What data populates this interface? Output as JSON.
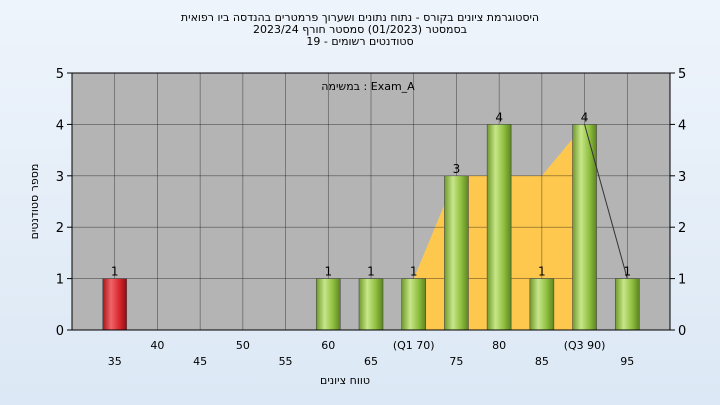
{
  "chart_data": {
    "type": "bar",
    "title_lines": [
      "היסטוגרמת ציונים בקורס - נתוח נתונים ושערוך פרמטרים בהנדסה ביו רפואית",
      "בסמסטר  (01/2023)  סמסטר חורף  2023/24",
      "סטודנטים רשומים - 19"
    ],
    "annotation": "במשימה : Exam_A",
    "xlabel": "טווח ציונים",
    "ylabel": "מספר סטודנטים",
    "ylim": [
      0,
      5
    ],
    "yticks": [
      0,
      1,
      2,
      3,
      4,
      5
    ],
    "grid": true,
    "x_ticks": [
      {
        "x": 35,
        "label": "35",
        "row": "low"
      },
      {
        "x": 40,
        "label": "40",
        "row": "high"
      },
      {
        "x": 45,
        "label": "45",
        "row": "low"
      },
      {
        "x": 50,
        "label": "50",
        "row": "high"
      },
      {
        "x": 55,
        "label": "55",
        "row": "low"
      },
      {
        "x": 60,
        "label": "60",
        "row": "high"
      },
      {
        "x": 65,
        "label": "65",
        "row": "low"
      },
      {
        "x": 70,
        "label": "(Q1 70)",
        "row": "high"
      },
      {
        "x": 75,
        "label": "75",
        "row": "low"
      },
      {
        "x": 80,
        "label": "80",
        "row": "high"
      },
      {
        "x": 85,
        "label": "85",
        "row": "low"
      },
      {
        "x": 90,
        "label": "(Q3 90)",
        "row": "high"
      },
      {
        "x": 95,
        "label": "95",
        "row": "low"
      }
    ],
    "bars": [
      {
        "x": 35,
        "value": 1,
        "color": "red"
      },
      {
        "x": 60,
        "value": 1,
        "color": "green"
      },
      {
        "x": 65,
        "value": 1,
        "color": "green"
      },
      {
        "x": 70,
        "value": 1,
        "color": "green"
      },
      {
        "x": 75,
        "value": 3,
        "color": "green"
      },
      {
        "x": 80,
        "value": 4,
        "color": "green"
      },
      {
        "x": 85,
        "value": 1,
        "color": "green"
      },
      {
        "x": 90,
        "value": 4,
        "color": "green"
      },
      {
        "x": 95,
        "value": 1,
        "color": "green"
      }
    ],
    "iqr_area": [
      {
        "x": 70,
        "y": 1
      },
      {
        "x": 75,
        "y": 3
      },
      {
        "x": 80,
        "y": 3
      },
      {
        "x": 85,
        "y": 3
      },
      {
        "x": 90,
        "y": 4
      }
    ],
    "whisker_line": [
      {
        "x": 90,
        "y": 4
      },
      {
        "x": 95,
        "y": 1
      }
    ],
    "colors": {
      "plot_bg": "#b4b4b4",
      "area": "#fdc84d",
      "bar_green": "#8fbf3f",
      "bar_red": "#d9262e"
    }
  }
}
